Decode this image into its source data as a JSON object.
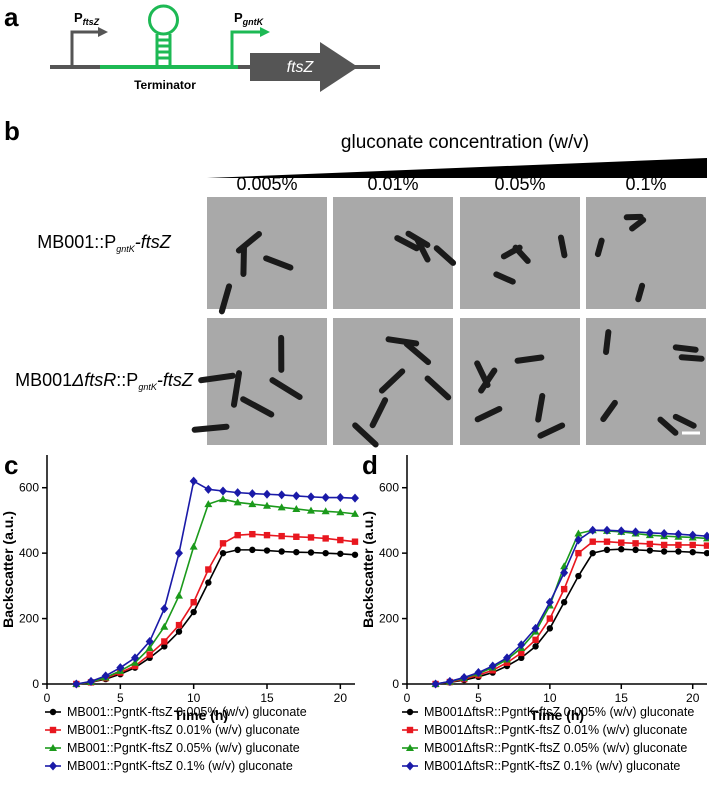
{
  "panel_labels": [
    "a",
    "b",
    "c",
    "d"
  ],
  "diagram": {
    "promoter1": [
      "P",
      "ftsZ"
    ],
    "promoter2": [
      "P",
      "gntK"
    ],
    "terminator": "Terminator",
    "gene": "ftsZ"
  },
  "micrographs": {
    "title": "gluconate concentration (w/v)",
    "columns": [
      "0.005%",
      "0.01%",
      "0.05%",
      "0.1%"
    ],
    "rows": [
      [
        "MB001::P",
        "gntK",
        "-ftsZ"
      ],
      [
        "MB001",
        "Δ",
        "ftsR",
        "::P",
        "gntK",
        "-ftsZ"
      ]
    ]
  },
  "chart_data": [
    {
      "type": "line",
      "xlabel": "Time (h)",
      "ylabel": "Backscatter (a.u.)",
      "x": [
        2,
        3,
        4,
        5,
        6,
        7,
        8,
        9,
        10,
        11,
        12,
        13,
        14,
        15,
        16,
        17,
        18,
        19,
        20,
        21
      ],
      "xlim": [
        0,
        21
      ],
      "ylim": [
        0,
        700
      ],
      "xticks": [
        0,
        5,
        10,
        15,
        20
      ],
      "yticks": [
        0,
        200,
        400,
        600
      ],
      "series": [
        {
          "name": "MB001::PgntK-ftsZ  0.005% (w/v) gluconate",
          "color": "#000000",
          "marker": "circle",
          "values": [
            0,
            5,
            15,
            30,
            50,
            80,
            115,
            160,
            220,
            310,
            400,
            410,
            410,
            408,
            405,
            403,
            402,
            400,
            398,
            395
          ]
        },
        {
          "name": "MB001::PgntK-ftsZ  0.01% (w/v) gluconate",
          "color": "#e8171f",
          "marker": "square",
          "values": [
            0,
            5,
            18,
            35,
            55,
            90,
            130,
            180,
            250,
            350,
            430,
            455,
            458,
            455,
            452,
            450,
            448,
            445,
            440,
            435
          ]
        },
        {
          "name": "MB001::PgntK-ftsZ  0.05% (w/v) gluconate",
          "color": "#1b9a1b",
          "marker": "triangle",
          "values": [
            0,
            6,
            20,
            40,
            65,
            110,
            175,
            270,
            420,
            550,
            565,
            555,
            550,
            545,
            540,
            535,
            530,
            528,
            525,
            520
          ]
        },
        {
          "name": "MB001::PgntK-ftsZ  0.1% (w/v) gluconate",
          "color": "#1a1aa8",
          "marker": "diamond",
          "values": [
            0,
            8,
            25,
            50,
            80,
            130,
            230,
            400,
            620,
            595,
            590,
            585,
            582,
            580,
            578,
            575,
            572,
            570,
            570,
            568
          ]
        }
      ]
    },
    {
      "type": "line",
      "xlabel": "Time (h)",
      "ylabel": "Backscatter (a.u.)",
      "x": [
        2,
        3,
        4,
        5,
        6,
        7,
        8,
        9,
        10,
        11,
        12,
        13,
        14,
        15,
        16,
        17,
        18,
        19,
        20,
        21
      ],
      "xlim": [
        0,
        21
      ],
      "ylim": [
        0,
        700
      ],
      "xticks": [
        0,
        5,
        10,
        15,
        20
      ],
      "yticks": [
        0,
        200,
        400,
        600
      ],
      "series": [
        {
          "name": "MB001ΔftsR::PgntK-ftsZ  0.005% (w/v) gluconate",
          "color": "#000000",
          "marker": "circle",
          "values": [
            0,
            5,
            12,
            22,
            35,
            55,
            80,
            115,
            170,
            250,
            330,
            400,
            410,
            412,
            410,
            408,
            405,
            405,
            403,
            400
          ]
        },
        {
          "name": "MB001ΔftsR::PgntK-ftsZ  0.01% (w/v) gluconate",
          "color": "#e8171f",
          "marker": "square",
          "values": [
            0,
            6,
            15,
            27,
            42,
            65,
            95,
            135,
            200,
            290,
            400,
            435,
            435,
            432,
            430,
            428,
            425,
            425,
            425,
            423
          ]
        },
        {
          "name": "MB001ΔftsR::PgntK-ftsZ  0.05% (w/v) gluconate",
          "color": "#1b9a1b",
          "marker": "triangle",
          "values": [
            0,
            7,
            18,
            32,
            50,
            75,
            110,
            160,
            240,
            360,
            460,
            470,
            468,
            465,
            460,
            455,
            452,
            450,
            448,
            445
          ]
        },
        {
          "name": "MB001ΔftsR::PgntK-ftsZ  0.1% (w/v) gluconate",
          "color": "#1a1aa8",
          "marker": "diamond",
          "values": [
            0,
            8,
            20,
            35,
            55,
            80,
            120,
            170,
            250,
            340,
            440,
            470,
            470,
            468,
            465,
            462,
            460,
            458,
            455,
            452
          ]
        }
      ]
    }
  ]
}
